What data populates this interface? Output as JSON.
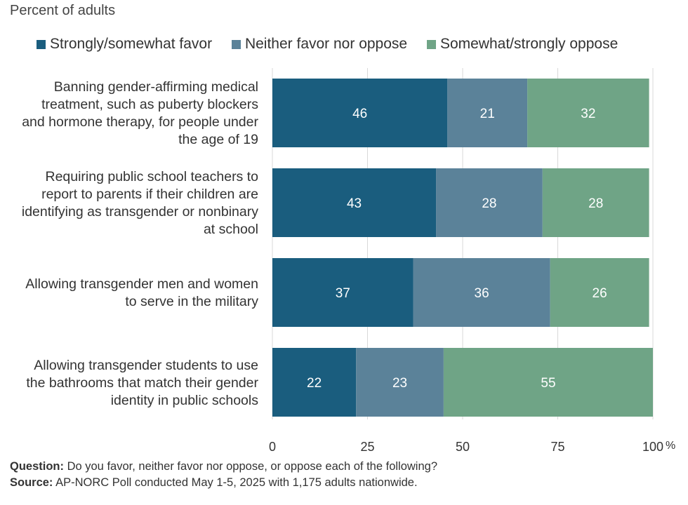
{
  "subtitle": "Percent of adults",
  "legend": [
    {
      "label": "Strongly/somewhat favor",
      "color": "#1a5d7e"
    },
    {
      "label": "Neither favor nor oppose",
      "color": "#5b8299"
    },
    {
      "label": "Somewhat/strongly oppose",
      "color": "#6fa486"
    }
  ],
  "chart_data": {
    "type": "bar",
    "orientation": "horizontal",
    "stacked": true,
    "categories": [
      "Banning gender-affirming medical treatment, such as puberty blockers and hormone therapy, for people under the age of 19",
      "Requiring public school teachers to report to parents if their children are identifying as transgender or nonbinary at school",
      "Allowing transgender men and women to serve in the military",
      "Allowing transgender students to use the bathrooms that match their gender identity in public schools"
    ],
    "category_lines": [
      [
        "Banning gender-affirming medical",
        "treatment, such as puberty blockers",
        "and hormone therapy, for people under",
        "the age of 19"
      ],
      [
        "Requiring public school teachers to",
        "report to parents if their children are",
        "identifying as transgender or nonbinary",
        "at school"
      ],
      [
        "Allowing transgender men and women",
        "to serve in the military"
      ],
      [
        "Allowing transgender students to use",
        "the bathrooms that match their gender",
        "identity in public schools"
      ]
    ],
    "series": [
      {
        "name": "Strongly/somewhat favor",
        "values": [
          46,
          43,
          37,
          22
        ]
      },
      {
        "name": "Neither favor nor oppose",
        "values": [
          21,
          28,
          36,
          23
        ]
      },
      {
        "name": "Somewhat/strongly oppose",
        "values": [
          32,
          28,
          26,
          55
        ]
      }
    ],
    "xlim": [
      0,
      100
    ],
    "xticks": [
      0,
      25,
      50,
      75,
      100
    ],
    "x_unit": "%",
    "grid": true,
    "legend_position": "top"
  },
  "footer": {
    "question_label": "Question:",
    "question_text": " Do you favor, neither favor nor oppose, or oppose each of the following?",
    "source_label": "Source:",
    "source_text": " AP-NORC Poll conducted May 1-5, 2025 with 1,175 adults nationwide."
  }
}
